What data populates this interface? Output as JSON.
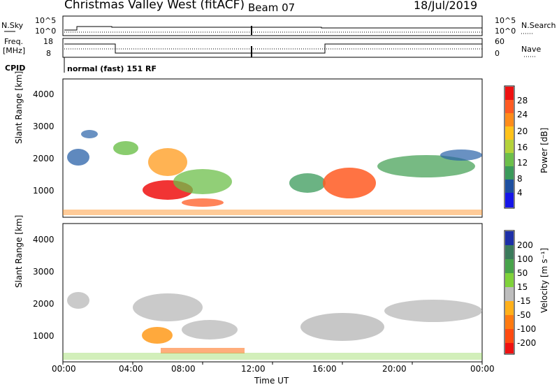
{
  "header": {
    "title": "Christmas Valley West (fitACF)",
    "beam": "Beam 07",
    "date": "18/Jul/2019"
  },
  "top_panels": {
    "nsky_label": "N.Sky",
    "nsearch_label": "N.Search",
    "nsky_ticks": [
      "10^5",
      "10^0"
    ],
    "nsearch_ticks": [
      "10^5",
      "10^0"
    ],
    "freq_label_1": "Freq.",
    "freq_label_2": "[MHz]",
    "freq_ticks": [
      "18",
      "8"
    ],
    "nave_label": "Nave",
    "nave_ticks": [
      "60",
      "0"
    ],
    "cpid_label": "CPID",
    "cpid_value": "normal (fast) 151 RF"
  },
  "chart_data": [
    {
      "type": "heatmap",
      "name": "power-panel",
      "ylabel": "Slant Range [km]",
      "yticks": [
        "4000",
        "3000",
        "2000",
        "1000"
      ],
      "ylim": [
        180,
        4550
      ],
      "xlim_hours": [
        0,
        24
      ],
      "colorbar": {
        "label": "Power [dB]",
        "ticks": [
          "28",
          "24",
          "20",
          "16",
          "12",
          "8",
          "4"
        ],
        "colors": [
          "#ee1111",
          "#ff5a22",
          "#ff8c1a",
          "#ffc21a",
          "#b4d23a",
          "#6cbf4a",
          "#3a9a5a",
          "#1d4fa0",
          "#1515e8"
        ]
      }
    },
    {
      "type": "heatmap",
      "name": "velocity-panel",
      "ylabel": "Slant Range [km]",
      "yticks": [
        "4000",
        "3000",
        "2000",
        "1000"
      ],
      "ylim": [
        180,
        4550
      ],
      "xlim_hours": [
        0,
        24
      ],
      "xlabel": "Time UT",
      "xticks": [
        "00:00",
        "04:00",
        "08:00",
        "12:00",
        "16:00",
        "20:00",
        "00:00"
      ],
      "colorbar": {
        "label": "Velocity [m s⁻¹]",
        "ticks": [
          "200",
          "100",
          "50",
          "15",
          "-15",
          "-50",
          "-100",
          "-200"
        ],
        "colors": [
          "#1d2fa8",
          "#3a7a5a",
          "#47a34a",
          "#7fd23a",
          "#bdbdbd",
          "#ffb01a",
          "#ff7a10",
          "#ff4a10",
          "#ee1111"
        ]
      }
    }
  ]
}
